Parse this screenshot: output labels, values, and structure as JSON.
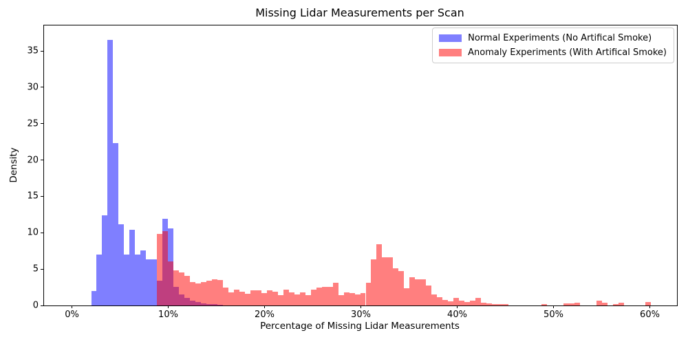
{
  "title": "Missing Lidar Measurements per Scan",
  "x_axis": {
    "label": "Percentage of Missing Lidar Measurements",
    "ticks": [
      {
        "value": 0,
        "label": "0%"
      },
      {
        "value": 10,
        "label": "10%"
      },
      {
        "value": 20,
        "label": "20%"
      },
      {
        "value": 30,
        "label": "30%"
      },
      {
        "value": 40,
        "label": "40%"
      },
      {
        "value": 50,
        "label": "50%"
      },
      {
        "value": 60,
        "label": "60%"
      }
    ]
  },
  "y_axis": {
    "label": "Density",
    "ticks": [
      {
        "value": 0,
        "label": "0"
      },
      {
        "value": 5,
        "label": "5"
      },
      {
        "value": 10,
        "label": "10"
      },
      {
        "value": 15,
        "label": "15"
      },
      {
        "value": 20,
        "label": "20"
      },
      {
        "value": 25,
        "label": "25"
      },
      {
        "value": 30,
        "label": "30"
      },
      {
        "value": 35,
        "label": "35"
      }
    ]
  },
  "legend": {
    "entries": [
      {
        "label": "Normal Experiments (No Artifical Smoke)",
        "fill": "rgba(0,0,255,0.5)",
        "approx_hex": "#7f7fff"
      },
      {
        "label": "Anomaly Experiments (With Artifical Smoke)",
        "fill": "rgba(255,0,0,0.5)",
        "approx_hex": "#ff7f7f"
      }
    ],
    "position": "upper right",
    "border_color": "#cccccc"
  },
  "chart_data": {
    "type": "bar",
    "subtype": "overlaid-histogram",
    "title": "Missing Lidar Measurements per Scan",
    "xlabel": "Percentage of Missing Lidar Measurements",
    "ylabel": "Density",
    "xlim": [
      -2.9,
      62.9
    ],
    "ylim": [
      0,
      38.5
    ],
    "grid": false,
    "bin_width_pct": 0.57,
    "overlap_color_note": "translucent red over translucent blue renders magenta",
    "series": [
      {
        "name": "Normal Experiments (No Artifical Smoke)",
        "fill": "rgba(0,0,255,0.5)",
        "bars": [
          [
            2.0,
            2.0
          ],
          [
            2.57,
            7.0
          ],
          [
            3.14,
            12.4
          ],
          [
            3.71,
            36.5
          ],
          [
            4.28,
            22.3
          ],
          [
            4.85,
            11.2
          ],
          [
            5.42,
            7.0
          ],
          [
            5.99,
            10.4
          ],
          [
            6.56,
            7.0
          ],
          [
            7.13,
            7.6
          ],
          [
            7.7,
            6.3
          ],
          [
            8.27,
            6.3
          ],
          [
            8.84,
            3.4
          ],
          [
            9.41,
            11.9
          ],
          [
            9.98,
            10.6
          ],
          [
            10.55,
            2.6
          ],
          [
            11.12,
            1.5
          ],
          [
            11.69,
            1.0
          ],
          [
            12.26,
            0.65
          ],
          [
            12.83,
            0.45
          ],
          [
            13.4,
            0.3
          ],
          [
            13.97,
            0.2
          ],
          [
            14.54,
            0.15
          ],
          [
            15.11,
            0.1
          ]
        ]
      },
      {
        "name": "Anomaly Experiments (With Artifical Smoke)",
        "fill": "rgba(255,0,0,0.5)",
        "bars": [
          [
            8.84,
            9.8
          ],
          [
            9.41,
            10.2
          ],
          [
            9.98,
            6.1
          ],
          [
            10.55,
            4.8
          ],
          [
            11.12,
            4.5
          ],
          [
            11.69,
            4.1
          ],
          [
            12.26,
            3.2
          ],
          [
            12.83,
            3.0
          ],
          [
            13.4,
            3.2
          ],
          [
            13.97,
            3.4
          ],
          [
            14.54,
            3.6
          ],
          [
            15.11,
            3.5
          ],
          [
            15.68,
            2.5
          ],
          [
            16.25,
            1.8
          ],
          [
            16.82,
            2.2
          ],
          [
            17.39,
            1.9
          ],
          [
            17.96,
            1.6
          ],
          [
            18.53,
            2.1
          ],
          [
            19.1,
            2.1
          ],
          [
            19.67,
            1.7
          ],
          [
            20.24,
            2.1
          ],
          [
            20.81,
            1.9
          ],
          [
            21.38,
            1.45
          ],
          [
            21.95,
            2.2
          ],
          [
            22.52,
            1.8
          ],
          [
            23.09,
            1.55
          ],
          [
            23.66,
            1.8
          ],
          [
            24.23,
            1.45
          ],
          [
            24.8,
            2.2
          ],
          [
            25.37,
            2.5
          ],
          [
            25.94,
            2.6
          ],
          [
            26.51,
            2.6
          ],
          [
            27.08,
            3.1
          ],
          [
            27.65,
            1.4
          ],
          [
            28.22,
            1.8
          ],
          [
            28.79,
            1.7
          ],
          [
            29.36,
            1.5
          ],
          [
            29.93,
            1.7
          ],
          [
            30.5,
            3.1
          ],
          [
            31.07,
            6.3
          ],
          [
            31.64,
            8.4
          ],
          [
            32.21,
            6.6
          ],
          [
            32.78,
            6.6
          ],
          [
            33.35,
            5.1
          ],
          [
            33.92,
            4.7
          ],
          [
            34.49,
            2.4
          ],
          [
            35.06,
            3.9
          ],
          [
            35.63,
            3.6
          ],
          [
            36.2,
            3.6
          ],
          [
            36.77,
            2.7
          ],
          [
            37.34,
            1.5
          ],
          [
            37.91,
            1.1
          ],
          [
            38.48,
            0.75
          ],
          [
            39.05,
            0.6
          ],
          [
            39.62,
            1.0
          ],
          [
            40.19,
            0.7
          ],
          [
            40.76,
            0.5
          ],
          [
            41.33,
            0.7
          ],
          [
            41.9,
            1.0
          ],
          [
            42.47,
            0.4
          ],
          [
            43.04,
            0.3
          ],
          [
            43.61,
            0.15
          ],
          [
            44.18,
            0.15
          ],
          [
            44.75,
            0.2
          ],
          [
            48.74,
            0.15
          ],
          [
            51.02,
            0.25
          ],
          [
            51.59,
            0.3
          ],
          [
            52.16,
            0.4
          ],
          [
            54.44,
            0.65
          ],
          [
            55.01,
            0.35
          ],
          [
            56.15,
            0.2
          ],
          [
            56.72,
            0.35
          ],
          [
            59.57,
            0.5
          ]
        ]
      }
    ]
  }
}
